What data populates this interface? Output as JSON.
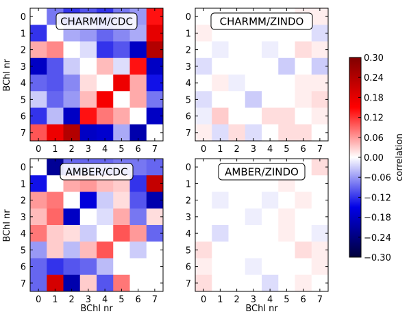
{
  "chart_data": {
    "type": "heatmap",
    "ticks": [
      "0",
      "1",
      "2",
      "3",
      "4",
      "5",
      "6",
      "7"
    ],
    "xlabel": "BChl nr",
    "ylabel": "BChl nr",
    "colorbar": {
      "label": "correlation",
      "range": [
        -0.3,
        0.3
      ],
      "tick_labels": [
        "0.30",
        "0.24",
        "0.18",
        "0.12",
        "0.06",
        "0.00",
        "−0.06",
        "−0.12",
        "−0.18",
        "−0.24",
        "−0.30"
      ],
      "colors": [
        "#3b0000",
        "#c00000",
        "#ff2020",
        "#ffffff",
        "#2020ff",
        "#0000c0",
        "#00003b"
      ]
    },
    "panels": [
      {
        "title": "CHARMM/CDC",
        "matrix": [
          [
            0.0,
            -0.08,
            -0.12,
            -0.1,
            -0.12,
            -0.08,
            -0.06,
            0.14
          ],
          [
            -0.12,
            0.0,
            -0.05,
            -0.06,
            -0.09,
            -0.07,
            -0.05,
            0.18
          ],
          [
            0.05,
            0.07,
            0.0,
            -0.02,
            -0.12,
            -0.1,
            -0.18,
            0.24
          ],
          [
            -0.18,
            -0.1,
            -0.03,
            0.0,
            0.04,
            -0.02,
            0.14,
            -0.18
          ],
          [
            -0.09,
            -0.1,
            -0.07,
            0.02,
            0.0,
            0.17,
            0.05,
            -0.14
          ],
          [
            -0.03,
            -0.09,
            -0.06,
            0.04,
            0.16,
            0.0,
            0.05,
            -0.08
          ],
          [
            -0.12,
            -0.04,
            -0.18,
            0.14,
            0.08,
            0.05,
            0.0,
            -0.18
          ],
          [
            0.1,
            0.17,
            0.24,
            -0.18,
            -0.17,
            -0.05,
            -0.2,
            0.0
          ]
        ]
      },
      {
        "title": "CHARMM/ZINDO",
        "matrix": [
          [
            0.0,
            0.0,
            0.0,
            0.0,
            0.0,
            0.0,
            0.01,
            0.01
          ],
          [
            0.01,
            0.0,
            0.0,
            0.0,
            0.0,
            0.0,
            0.0,
            -0.02
          ],
          [
            0.0,
            -0.01,
            0.0,
            0.0,
            -0.01,
            0.0,
            0.02,
            0.01
          ],
          [
            -0.02,
            0.0,
            0.0,
            0.0,
            0.0,
            -0.03,
            0.0,
            -0.03
          ],
          [
            0.0,
            0.01,
            -0.01,
            0.0,
            0.0,
            0.0,
            0.01,
            0.01
          ],
          [
            -0.02,
            0.0,
            0.0,
            -0.03,
            0.0,
            0.0,
            0.01,
            0.02
          ],
          [
            -0.01,
            0.03,
            0.0,
            0.0,
            0.02,
            0.02,
            0.0,
            0.01
          ],
          [
            0.01,
            -0.02,
            0.02,
            -0.02,
            0.0,
            0.02,
            0.02,
            0.0
          ]
        ]
      },
      {
        "title": "AMBER/CDC",
        "matrix": [
          [
            0.0,
            -0.22,
            -0.09,
            -0.09,
            -0.09,
            -0.08,
            -0.08,
            -0.09
          ],
          [
            -0.14,
            0.0,
            0.05,
            0.06,
            0.04,
            0.03,
            -0.12,
            0.22
          ],
          [
            0.06,
            0.08,
            0.0,
            -0.16,
            -0.03,
            0.02,
            -0.1,
            -0.2
          ],
          [
            0.04,
            0.09,
            -0.18,
            0.0,
            -0.02,
            0.05,
            -0.08,
            0.02
          ],
          [
            0.08,
            0.03,
            0.02,
            -0.03,
            0.0,
            0.1,
            0.06,
            -0.09
          ],
          [
            -0.06,
            0.03,
            -0.04,
            0.04,
            0.1,
            0.0,
            -0.03,
            0.0
          ],
          [
            -0.09,
            -0.12,
            -0.1,
            -0.09,
            -0.04,
            0.0,
            0.0,
            0.0
          ],
          [
            -0.09,
            0.2,
            -0.2,
            0.03,
            -0.1,
            0.08,
            0.0,
            0.0
          ]
        ]
      },
      {
        "title": "AMBER/ZINDO",
        "matrix": [
          [
            0.0,
            0.0,
            0.0,
            0.0,
            0.0,
            0.0,
            0.0,
            0.02
          ],
          [
            0.0,
            0.0,
            0.0,
            0.0,
            0.0,
            0.01,
            0.0,
            0.0
          ],
          [
            0.0,
            -0.01,
            0.0,
            0.0,
            -0.01,
            0.0,
            0.01,
            0.0
          ],
          [
            0.0,
            0.0,
            0.0,
            -0.01,
            0.0,
            0.01,
            0.0,
            0.0
          ],
          [
            0.0,
            -0.02,
            0.0,
            0.0,
            0.0,
            0.01,
            0.0,
            -0.01
          ],
          [
            0.02,
            0.0,
            0.0,
            0.0,
            0.0,
            0.0,
            0.02,
            0.01
          ],
          [
            0.01,
            0.0,
            0.0,
            -0.01,
            0.0,
            0.0,
            0.0,
            0.01
          ],
          [
            0.02,
            0.0,
            0.0,
            0.0,
            -0.02,
            0.0,
            0.01,
            0.0
          ]
        ]
      }
    ]
  }
}
